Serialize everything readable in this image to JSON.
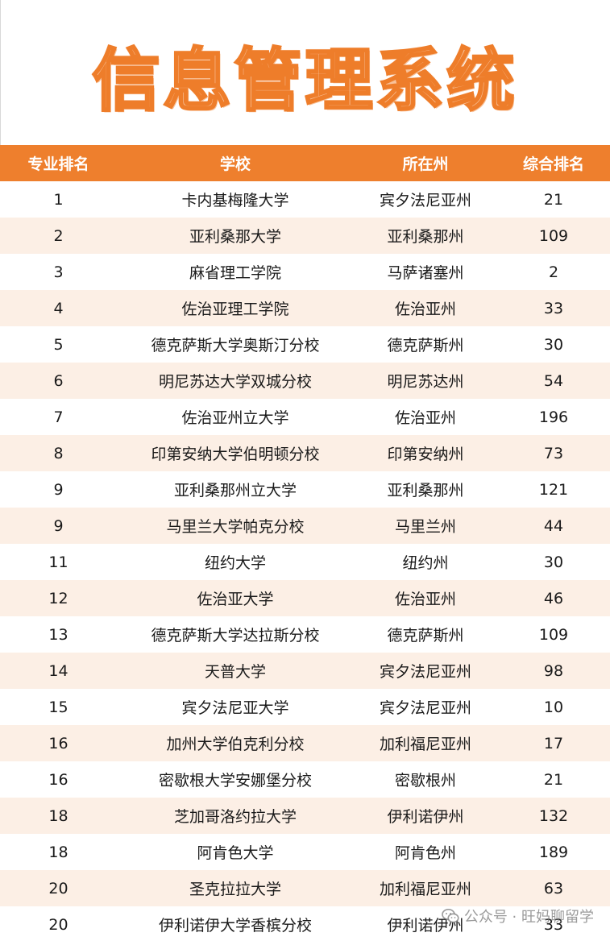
{
  "title": "信息管理系统",
  "table": {
    "headers": [
      "专业排名",
      "学校",
      "所在州",
      "综合排名"
    ],
    "rows": [
      [
        "1",
        "卡内基梅隆大学",
        "宾夕法尼亚州",
        "21"
      ],
      [
        "2",
        "亚利桑那大学",
        "亚利桑那州",
        "109"
      ],
      [
        "3",
        "麻省理工学院",
        "马萨诸塞州",
        "2"
      ],
      [
        "4",
        "佐治亚理工学院",
        "佐治亚州",
        "33"
      ],
      [
        "5",
        "德克萨斯大学奥斯汀分校",
        "德克萨斯州",
        "30"
      ],
      [
        "6",
        "明尼苏达大学双城分校",
        "明尼苏达州",
        "54"
      ],
      [
        "7",
        "佐治亚州立大学",
        "佐治亚州",
        "196"
      ],
      [
        "8",
        "印第安纳大学伯明顿分校",
        "印第安纳州",
        "73"
      ],
      [
        "9",
        "亚利桑那州立大学",
        "亚利桑那州",
        "121"
      ],
      [
        "9",
        "马里兰大学帕克分校",
        "马里兰州",
        "44"
      ],
      [
        "11",
        "纽约大学",
        "纽约州",
        "30"
      ],
      [
        "12",
        "佐治亚大学",
        "佐治亚州",
        "46"
      ],
      [
        "13",
        "德克萨斯大学达拉斯分校",
        "德克萨斯州",
        "109"
      ],
      [
        "14",
        "天普大学",
        "宾夕法尼亚州",
        "98"
      ],
      [
        "15",
        "宾夕法尼亚大学",
        "宾夕法尼亚州",
        "10"
      ],
      [
        "16",
        "加州大学伯克利分校",
        "加利福尼亚州",
        "17"
      ],
      [
        "16",
        "密歇根大学安娜堡分校",
        "密歇根州",
        "21"
      ],
      [
        "18",
        "芝加哥洛约拉大学",
        "伊利诺伊州",
        "132"
      ],
      [
        "18",
        "阿肯色大学",
        "阿肯色州",
        "189"
      ],
      [
        "20",
        "圣克拉拉大学",
        "加利福尼亚州",
        "63"
      ],
      [
        "20",
        "伊利诺伊大学香槟分校",
        "伊利诺伊州",
        "33"
      ]
    ]
  },
  "watermark": {
    "text": "公众号 · 旺妈聊留学",
    "icon": "wechat-icon"
  },
  "colors": {
    "accent": "#ee7f2d",
    "row_alt": "#fcefe5"
  }
}
